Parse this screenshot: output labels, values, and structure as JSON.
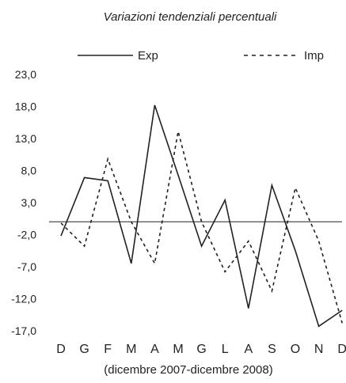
{
  "chart_data": {
    "type": "line",
    "title": "Variazioni tendenziali percentuali",
    "xlabel": "(dicembre 2007-dicembre 2008)",
    "ylabel": "",
    "categories": [
      "D",
      "G",
      "F",
      "M",
      "A",
      "M",
      "G",
      "L",
      "A",
      "S",
      "O",
      "N",
      "D"
    ],
    "yticks": [
      "23,0",
      "18,0",
      "13,0",
      "8,0",
      "3,0",
      "-2,0",
      "-7,0",
      "-12,0",
      "-17,0"
    ],
    "ylim": [
      -17,
      23
    ],
    "reference_line": 0,
    "legend_position": "top",
    "series": [
      {
        "name": "Exp",
        "style": "solid",
        "color": "#222222",
        "values": [
          -2.2,
          6.9,
          6.4,
          -6.5,
          18.2,
          7.3,
          -3.8,
          3.4,
          -13.5,
          5.7,
          -4.5,
          -16.3,
          -13.8
        ]
      },
      {
        "name": "Imp",
        "style": "dashed",
        "color": "#222222",
        "values": [
          -0.2,
          -3.8,
          9.8,
          0.0,
          -6.5,
          14.1,
          0.0,
          -7.8,
          -3.0,
          -10.8,
          5.3,
          -3.0,
          -15.8
        ]
      }
    ]
  }
}
